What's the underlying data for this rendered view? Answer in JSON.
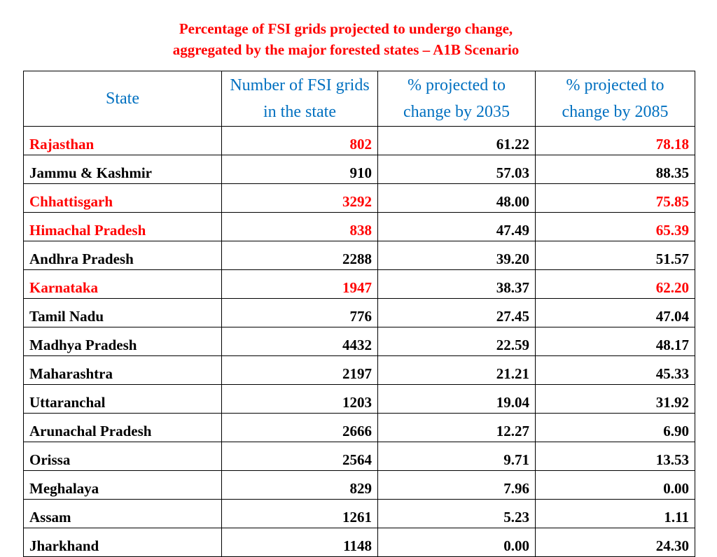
{
  "title": {
    "line1": "Percentage of FSI grids projected to undergo change,",
    "line2": "aggregated by the major forested states – A1B Scenario"
  },
  "colors": {
    "title": "#ff0000",
    "header": "#0070c0",
    "highlight": "#ff0000",
    "text": "#000000"
  },
  "table": {
    "headers": [
      "State",
      "Number of FSI grids in the state",
      "% projected to change by 2035",
      "% projected to change by 2085"
    ],
    "rows": [
      {
        "state": "Rajasthan",
        "grids": "802",
        "p2035": "61.22",
        "p2085": "78.18",
        "highlight": true
      },
      {
        "state": "Jammu & Kashmir",
        "grids": "910",
        "p2035": "57.03",
        "p2085": "88.35",
        "highlight": false
      },
      {
        "state": "Chhattisgarh",
        "grids": "3292",
        "p2035": "48.00",
        "p2085": "75.85",
        "highlight": true
      },
      {
        "state": "Himachal Pradesh",
        "grids": "838",
        "p2035": "47.49",
        "p2085": "65.39",
        "highlight": true
      },
      {
        "state": "Andhra Pradesh",
        "grids": "2288",
        "p2035": "39.20",
        "p2085": "51.57",
        "highlight": false
      },
      {
        "state": "Karnataka",
        "grids": "1947",
        "p2035": "38.37",
        "p2085": "62.20",
        "highlight": true
      },
      {
        "state": "Tamil Nadu",
        "grids": "776",
        "p2035": "27.45",
        "p2085": "47.04",
        "highlight": false
      },
      {
        "state": "Madhya Pradesh",
        "grids": "4432",
        "p2035": "22.59",
        "p2085": "48.17",
        "highlight": false
      },
      {
        "state": "Maharashtra",
        "grids": "2197",
        "p2035": "21.21",
        "p2085": "45.33",
        "highlight": false
      },
      {
        "state": "Uttaranchal",
        "grids": "1203",
        "p2035": "19.04",
        "p2085": "31.92",
        "highlight": false
      },
      {
        "state": "Arunachal Pradesh",
        "grids": "2666",
        "p2035": "12.27",
        "p2085": "6.90",
        "highlight": false
      },
      {
        "state": "Orissa",
        "grids": "2564",
        "p2035": "9.71",
        "p2085": "13.53",
        "highlight": false
      },
      {
        "state": "Meghalaya",
        "grids": "829",
        "p2035": "7.96",
        "p2085": "0.00",
        "highlight": false
      },
      {
        "state": "Assam",
        "grids": "1261",
        "p2035": "5.23",
        "p2085": "1.11",
        "highlight": false
      },
      {
        "state": "Jharkhand",
        "grids": "1148",
        "p2035": "0.00",
        "p2085": "24.30",
        "highlight": false
      }
    ]
  }
}
